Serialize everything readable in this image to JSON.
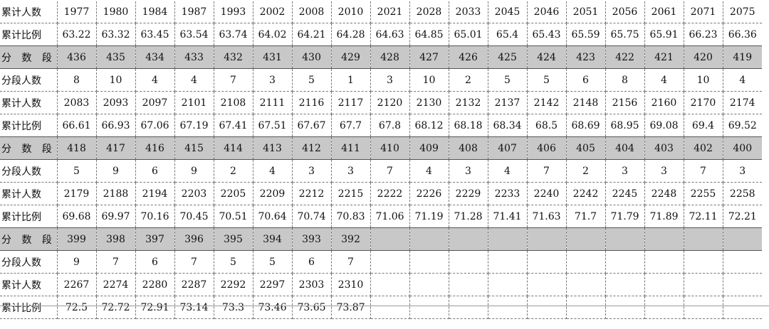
{
  "labels": {
    "band": "分 数 段",
    "count": "分段人数",
    "cum_count": "累计人数",
    "cum_ratio": "累计比例"
  },
  "top": {
    "cum_count": [
      "1977",
      "1980",
      "1984",
      "1987",
      "1993",
      "2002",
      "2008",
      "2010",
      "2021",
      "2028",
      "2033",
      "2045",
      "2046",
      "2051",
      "2056",
      "2061",
      "2071",
      "2075"
    ],
    "cum_ratio": [
      "63.22",
      "63.32",
      "63.45",
      "63.54",
      "63.74",
      "64.02",
      "64.21",
      "64.28",
      "64.63",
      "64.85",
      "65.01",
      "65.4",
      "65.43",
      "65.59",
      "65.75",
      "65.91",
      "66.23",
      "66.36"
    ]
  },
  "blocks": [
    {
      "band": [
        "436",
        "435",
        "434",
        "433",
        "432",
        "431",
        "430",
        "429",
        "428",
        "427",
        "426",
        "425",
        "424",
        "423",
        "422",
        "421",
        "420",
        "419"
      ],
      "count": [
        "8",
        "10",
        "4",
        "4",
        "7",
        "3",
        "5",
        "1",
        "3",
        "10",
        "2",
        "5",
        "5",
        "6",
        "8",
        "4",
        "10",
        "4"
      ],
      "cum_count": [
        "2083",
        "2093",
        "2097",
        "2101",
        "2108",
        "2111",
        "2116",
        "2117",
        "2120",
        "2130",
        "2132",
        "2137",
        "2142",
        "2148",
        "2156",
        "2160",
        "2170",
        "2174"
      ],
      "cum_ratio": [
        "66.61",
        "66.93",
        "67.06",
        "67.19",
        "67.41",
        "67.51",
        "67.67",
        "67.7",
        "67.8",
        "68.12",
        "68.18",
        "68.34",
        "68.5",
        "68.69",
        "68.95",
        "69.08",
        "69.4",
        "69.52"
      ]
    },
    {
      "band": [
        "418",
        "417",
        "416",
        "415",
        "414",
        "413",
        "412",
        "411",
        "410",
        "409",
        "408",
        "407",
        "406",
        "405",
        "404",
        "403",
        "402",
        "400"
      ],
      "count": [
        "5",
        "9",
        "6",
        "9",
        "2",
        "4",
        "3",
        "3",
        "7",
        "4",
        "3",
        "4",
        "7",
        "2",
        "3",
        "3",
        "7",
        "3"
      ],
      "cum_count": [
        "2179",
        "2188",
        "2194",
        "2203",
        "2205",
        "2209",
        "2212",
        "2215",
        "2222",
        "2226",
        "2229",
        "2233",
        "2240",
        "2242",
        "2245",
        "2248",
        "2255",
        "2258"
      ],
      "cum_ratio": [
        "69.68",
        "69.97",
        "70.16",
        "70.45",
        "70.51",
        "70.64",
        "70.74",
        "70.83",
        "71.06",
        "71.19",
        "71.28",
        "71.41",
        "71.63",
        "71.7",
        "71.79",
        "71.89",
        "72.11",
        "72.21"
      ]
    },
    {
      "band": [
        "399",
        "398",
        "397",
        "396",
        "395",
        "394",
        "393",
        "392",
        "",
        "",
        "",
        "",
        "",
        "",
        "",
        "",
        "",
        ""
      ],
      "count": [
        "9",
        "7",
        "6",
        "7",
        "5",
        "5",
        "6",
        "7",
        "",
        "",
        "",
        "",
        "",
        "",
        "",
        "",
        "",
        ""
      ],
      "cum_count": [
        "2267",
        "2274",
        "2280",
        "2287",
        "2292",
        "2297",
        "2303",
        "2310",
        "",
        "",
        "",
        "",
        "",
        "",
        "",
        "",
        "",
        ""
      ],
      "cum_ratio": [
        "72.5",
        "72.72",
        "72.91",
        "73.14",
        "73.3",
        "73.46",
        "73.65",
        "73.87",
        "",
        "",
        "",
        "",
        "",
        "",
        "",
        "",
        "",
        ""
      ]
    }
  ]
}
